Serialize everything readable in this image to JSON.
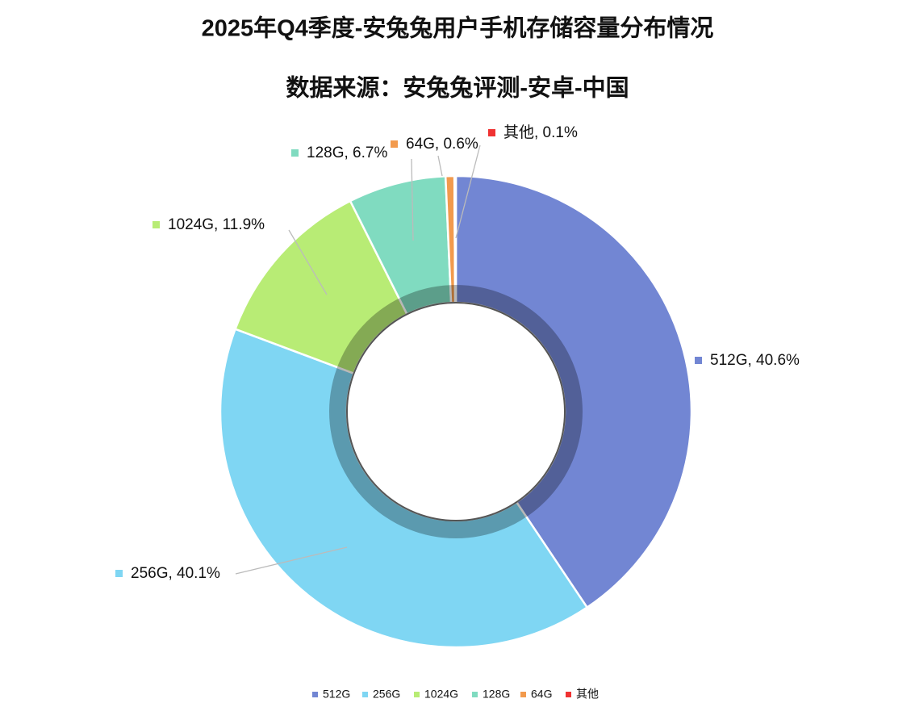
{
  "chart_data": {
    "type": "donut",
    "title": "2025年Q4季度-安兔兔用户手机存储容量分布情况",
    "subtitle": "数据来源：安兔兔评测-安卓-中国",
    "categories": [
      "512G",
      "256G",
      "1024G",
      "128G",
      "64G",
      "其他"
    ],
    "values": [
      40.6,
      40.1,
      11.9,
      6.7,
      0.6,
      0.1
    ],
    "value_labels": [
      "512G, 40.6%",
      "256G, 40.1%",
      "1024G, 11.9%",
      "128G, 6.7%",
      "64G, 0.6%",
      "其他, 0.1%"
    ],
    "colors": [
      "#7286d3",
      "#7fd6f3",
      "#b8ec75",
      "#80dbc0",
      "#f29a4d",
      "#f03232"
    ],
    "legend": "bottom"
  }
}
